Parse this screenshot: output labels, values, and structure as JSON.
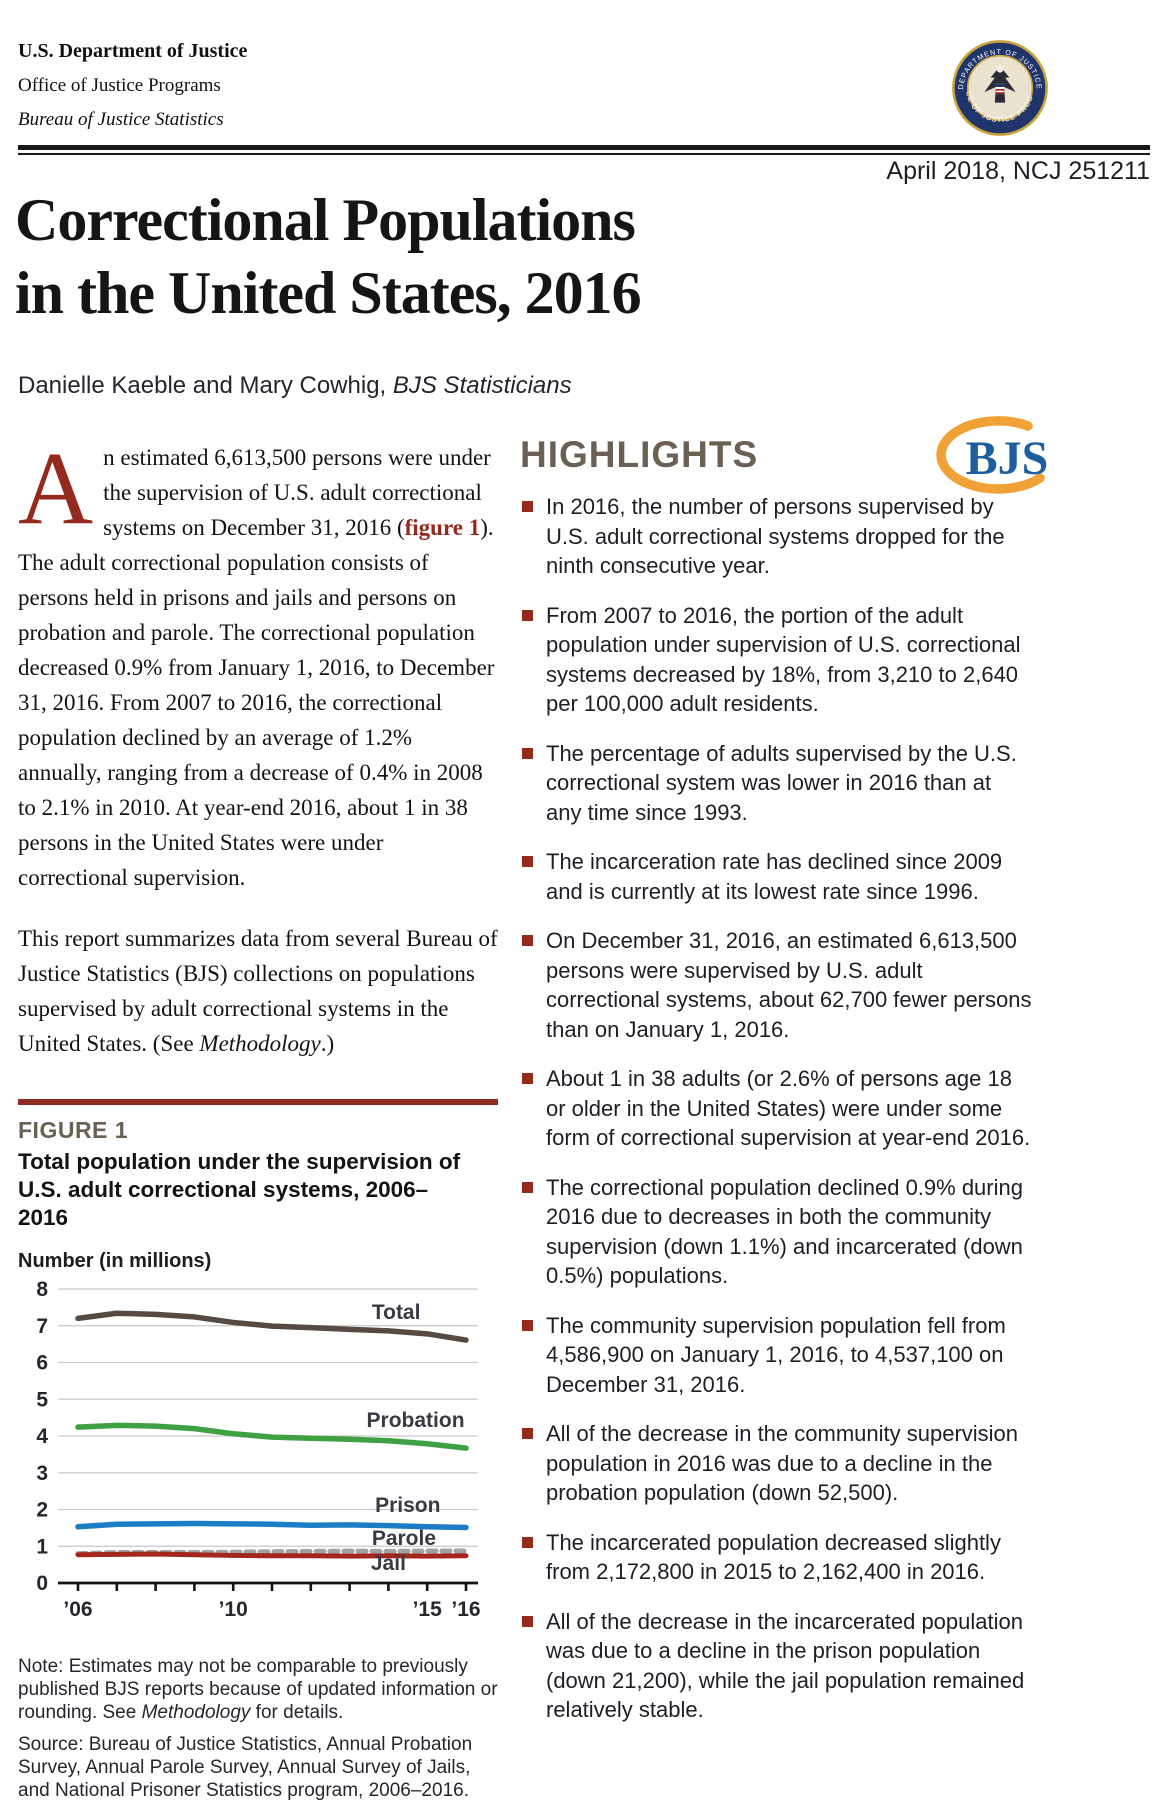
{
  "colors": {
    "accent_red": "#942a1e",
    "figure_rule_red": "#8e2a21",
    "heading_gray": "#6b6054",
    "logo_blue": "#1d5e9e",
    "logo_orange": "#f0a236",
    "total_line": "#564a41",
    "probation_line": "#3fa143",
    "prison_line": "#1c7cc4",
    "parole_line": "#a2a2a2",
    "jail_line": "#a3271d"
  },
  "letterhead": {
    "dept": "U.S. Department of Justice",
    "office": "Office of Justice Programs",
    "bureau": "Bureau of Justice Statistics",
    "seal": {
      "ring_text_top": "DEPARTMENT OF JUSTICE",
      "ring_text_bottom": "OFFICE OF JUSTICE PROGRAMS"
    }
  },
  "dateline": "April 2018, NCJ 251211",
  "title": {
    "line1": "Correctional Populations",
    "line2": "in the United States, 2016"
  },
  "byline": {
    "authors": "Danielle Kaeble and Mary Cowhig, ",
    "role": "BJS Statisticians"
  },
  "logo": {
    "text": "BJS"
  },
  "intro": {
    "dropcap": "A",
    "p1_part1": "n estimated 6,613,500 persons were under the supervision of U.S. adult correctional systems on December 31, 2016 (",
    "p1_figref": "figure 1",
    "p1_part2": "). The adult correctional population consists of persons held in prisons and jails and persons on probation and parole. The correctional population decreased 0.9% from January 1, 2016, to December 31, 2016. From 2007 to 2016, the correctional population declined by an average of 1.2% annually, ranging from a decrease of 0.4% in 2008 to 2.1% in 2010. At year-end 2016, about 1 in 38 persons in the United States were under correctional supervision.",
    "p2_part1": "This report summarizes data from several Bureau of Justice Statistics (BJS) collections on populations supervised by adult correctional systems in the United States. (See ",
    "p2_italic": "Methodology",
    "p2_part2": ".)"
  },
  "highlights": {
    "heading": "HIGHLIGHTS",
    "items": [
      "In 2016, the number of persons supervised by U.S. adult correctional systems dropped for the ninth consecutive year.",
      "From 2007 to 2016, the portion of the adult population under supervision of U.S. correctional systems decreased by 18%, from 3,210 to 2,640 per 100,000 adult residents.",
      "The percentage of adults supervised by the U.S. correctional system was lower in 2016 than at any time since 1993.",
      "The incarceration rate has declined since 2009 and is currently at its lowest rate since 1996.",
      "On December 31, 2016, an estimated 6,613,500 persons were supervised by U.S. adult correctional systems, about 62,700 fewer persons than on January 1, 2016.",
      "About 1 in 38 adults (or 2.6% of persons age 18 or older in the United States) were under some form of correctional supervision at year-end 2016.",
      "The correctional population declined 0.9% during 2016 due to decreases in both the community supervision (down 1.1%) and incarcerated (down 0.5%) populations.",
      "The community supervision population fell from 4,586,900 on January 1, 2016, to 4,537,100 on December 31, 2016.",
      "All of the decrease in the community supervision population in 2016 was due to a decline in the probation population (down 52,500).",
      "The incarcerated population decreased slightly from 2,172,800 in 2015 to 2,162,400 in 2016.",
      "All of the decrease in the incarcerated population was due to a decline in the prison population (down 21,200), while the jail population remained relatively stable."
    ]
  },
  "figure": {
    "label": "FIGURE 1",
    "title": "Total population under the supervision of U.S. adult correctional systems, 2006–2016",
    "note_part1": "Note: Estimates may not be comparable to previously published BJS reports because of updated information or rounding. See ",
    "note_italic": "Methodology",
    "note_part2": " for details.",
    "source": "Source: Bureau of Justice Statistics, Annual Probation Survey, Annual Parole Survey, Annual Survey of Jails, and National Prisoner Statistics program, 2006–2016."
  },
  "chart_data": {
    "type": "line",
    "title": "Total population under the supervision of U.S. adult correctional systems, 2006–2016",
    "ylabel": "Number (in millions)",
    "ylim": [
      0,
      8
    ],
    "yticks": [
      0,
      1,
      2,
      3,
      4,
      5,
      6,
      7,
      8
    ],
    "grid": true,
    "x": [
      2006,
      2007,
      2008,
      2009,
      2010,
      2011,
      2012,
      2013,
      2014,
      2015,
      2016
    ],
    "xtick_labels": {
      "2006": "’06",
      "2010": "’10",
      "2015": "’15",
      "2016": "’16"
    },
    "series": [
      {
        "name": "Total",
        "color": "#564a41",
        "style": "solid",
        "width": 5.5,
        "values": [
          7.2,
          7.34,
          7.31,
          7.24,
          7.09,
          6.99,
          6.95,
          6.9,
          6.86,
          6.78,
          6.61
        ]
      },
      {
        "name": "Probation",
        "color": "#3fa143",
        "style": "solid",
        "width": 5.5,
        "values": [
          4.24,
          4.29,
          4.27,
          4.2,
          4.06,
          3.97,
          3.94,
          3.91,
          3.87,
          3.79,
          3.67
        ]
      },
      {
        "name": "Prison",
        "color": "#1c7cc4",
        "style": "solid",
        "width": 5.5,
        "values": [
          1.53,
          1.6,
          1.61,
          1.62,
          1.61,
          1.6,
          1.57,
          1.58,
          1.56,
          1.53,
          1.51
        ]
      },
      {
        "name": "Parole",
        "color": "#a2a2a2",
        "style": "dashed",
        "width": 5,
        "values": [
          0.8,
          0.83,
          0.83,
          0.83,
          0.84,
          0.85,
          0.86,
          0.87,
          0.86,
          0.87,
          0.87
        ]
      },
      {
        "name": "Jail",
        "color": "#a3271d",
        "style": "solid",
        "width": 5,
        "values": [
          0.77,
          0.78,
          0.79,
          0.77,
          0.75,
          0.74,
          0.74,
          0.73,
          0.74,
          0.73,
          0.74
        ]
      }
    ],
    "annotations": [
      {
        "text": "Total",
        "x": 2014.2,
        "y": 7.18
      },
      {
        "text": "Probation",
        "x": 2014.7,
        "y": 4.25
      },
      {
        "text": "Prison",
        "x": 2014.5,
        "y": 1.93
      },
      {
        "text": "Parole",
        "x": 2014.4,
        "y": 1.04
      },
      {
        "text": "Jail",
        "x": 2014.0,
        "y": 0.36
      }
    ],
    "legend": "inline-labels"
  }
}
